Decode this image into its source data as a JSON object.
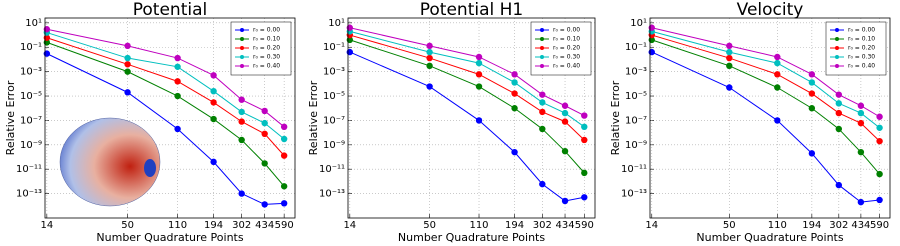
{
  "chart_data": [
    {
      "type": "line",
      "title": "Potential",
      "x_label": "Number Quadrature Points",
      "y_label": "Relative Error",
      "x": [
        14,
        50,
        110,
        194,
        302,
        434,
        590
      ],
      "x_log": true,
      "y_log": true,
      "grid": true,
      "legend": "upper right",
      "xlim": [
        13.6,
        700
      ],
      "ylim": [
        1e-15,
        25
      ],
      "xticks": [
        14,
        50,
        110,
        194,
        302,
        434,
        590
      ],
      "yticks": [
        {
          "value": 10,
          "label": "10¹"
        },
        {
          "value": 0.1,
          "label": "10⁻¹"
        },
        {
          "value": 0.001,
          "label": "10⁻³"
        },
        {
          "value": 1e-05,
          "label": "10⁻⁵"
        },
        {
          "value": 1e-07,
          "label": "10⁻⁷"
        },
        {
          "value": 1e-09,
          "label": "10⁻⁹"
        },
        {
          "value": 1e-11,
          "label": "10⁻¹¹"
        },
        {
          "value": 1e-13,
          "label": "10⁻¹³"
        }
      ],
      "series": [
        {
          "name": "r₀ = 0.00",
          "color": "#0000ff",
          "values": [
            0.03,
            2e-05,
            2e-08,
            4e-11,
            1e-13,
            1.3e-14,
            1.6e-14
          ]
        },
        {
          "name": "r₀ = 0.10",
          "color": "#008000",
          "values": [
            0.25,
            0.001,
            1e-05,
            1.3e-07,
            2.5e-09,
            3e-11,
            4e-13
          ]
        },
        {
          "name": "r₀ = 0.20",
          "color": "#ff0000",
          "values": [
            0.6,
            0.004,
            0.00016,
            3e-06,
            8e-08,
            8e-09,
            1.3e-10
          ]
        },
        {
          "name": "r₀ = 0.30",
          "color": "#00bfbf",
          "values": [
            1.6,
            0.013,
            0.0025,
            2.5e-05,
            5e-07,
            6e-08,
            3e-09
          ]
        },
        {
          "name": "r₀ = 0.40",
          "color": "#bf00bf",
          "values": [
            3,
            0.13,
            0.013,
            0.0005,
            5e-06,
            6e-07,
            3e-08
          ]
        }
      ]
    },
    {
      "type": "line",
      "title": "Potential H1",
      "x_label": "Number Quadrature Points",
      "y_label": "Relative Error",
      "x": [
        14,
        50,
        110,
        194,
        302,
        434,
        590
      ],
      "x_log": true,
      "y_log": true,
      "grid": true,
      "legend": "upper right",
      "xlim": [
        13.6,
        700
      ],
      "ylim": [
        1e-15,
        25
      ],
      "xticks": [
        14,
        50,
        110,
        194,
        302,
        434,
        590
      ],
      "yticks": [
        {
          "value": 10,
          "label": "10¹"
        },
        {
          "value": 0.1,
          "label": "10⁻¹"
        },
        {
          "value": 0.001,
          "label": "10⁻³"
        },
        {
          "value": 1e-05,
          "label": "10⁻⁵"
        },
        {
          "value": 1e-07,
          "label": "10⁻⁷"
        },
        {
          "value": 1e-09,
          "label": "10⁻⁹"
        },
        {
          "value": 1e-11,
          "label": "10⁻¹¹"
        },
        {
          "value": 1e-13,
          "label": "10⁻¹³"
        }
      ],
      "series": [
        {
          "name": "r₀ = 0.00",
          "color": "#0000ff",
          "values": [
            0.04,
            6e-05,
            1e-07,
            2.5e-10,
            6e-13,
            2.5e-14,
            5e-14
          ]
        },
        {
          "name": "r₀ = 0.10",
          "color": "#008000",
          "values": [
            0.4,
            0.003,
            6e-05,
            1e-06,
            2e-08,
            3e-10,
            5e-12
          ]
        },
        {
          "name": "r₀ = 0.20",
          "color": "#ff0000",
          "values": [
            1,
            0.013,
            0.0006,
            1.6e-05,
            5e-07,
            8e-08,
            2.5e-09
          ]
        },
        {
          "name": "r₀ = 0.30",
          "color": "#00bfbf",
          "values": [
            2,
            0.04,
            0.005,
            0.00013,
            3e-06,
            4e-07,
            3e-08
          ]
        },
        {
          "name": "r₀ = 0.40",
          "color": "#bf00bf",
          "values": [
            4,
            0.13,
            0.016,
            0.0006,
            1.3e-05,
            1.6e-06,
            2.5e-07
          ]
        }
      ]
    },
    {
      "type": "line",
      "title": "Velocity",
      "x_label": "Number Quadrature Points",
      "y_label": "Relative Error",
      "x": [
        14,
        50,
        110,
        194,
        302,
        434,
        590
      ],
      "x_log": true,
      "y_log": true,
      "grid": true,
      "legend": "upper right",
      "xlim": [
        13.6,
        700
      ],
      "ylim": [
        1e-15,
        25
      ],
      "xticks": [
        14,
        50,
        110,
        194,
        302,
        434,
        590
      ],
      "yticks": [
        {
          "value": 10,
          "label": "10¹"
        },
        {
          "value": 0.1,
          "label": "10⁻¹"
        },
        {
          "value": 0.001,
          "label": "10⁻³"
        },
        {
          "value": 1e-05,
          "label": "10⁻⁵"
        },
        {
          "value": 1e-07,
          "label": "10⁻⁷"
        },
        {
          "value": 1e-09,
          "label": "10⁻⁹"
        },
        {
          "value": 1e-11,
          "label": "10⁻¹¹"
        },
        {
          "value": 1e-13,
          "label": "10⁻¹³"
        }
      ],
      "series": [
        {
          "name": "r₀ = 0.00",
          "color": "#0000ff",
          "values": [
            0.04,
            5e-05,
            1e-07,
            2e-10,
            5e-13,
            2e-14,
            3e-14
          ]
        },
        {
          "name": "r₀ = 0.10",
          "color": "#008000",
          "values": [
            0.4,
            0.003,
            5e-05,
            1e-06,
            2e-08,
            2.5e-10,
            4e-12
          ]
        },
        {
          "name": "r₀ = 0.20",
          "color": "#ff0000",
          "values": [
            1,
            0.013,
            0.0006,
            1.6e-05,
            4e-07,
            6e-08,
            2e-09
          ]
        },
        {
          "name": "r₀ = 0.30",
          "color": "#00bfbf",
          "values": [
            2,
            0.04,
            0.005,
            0.00013,
            2.5e-06,
            4e-07,
            2.5e-08
          ]
        },
        {
          "name": "r₀ = 0.40",
          "color": "#bf00bf",
          "values": [
            4,
            0.13,
            0.016,
            0.0006,
            1.3e-05,
            1.6e-06,
            2e-07
          ]
        }
      ]
    }
  ]
}
